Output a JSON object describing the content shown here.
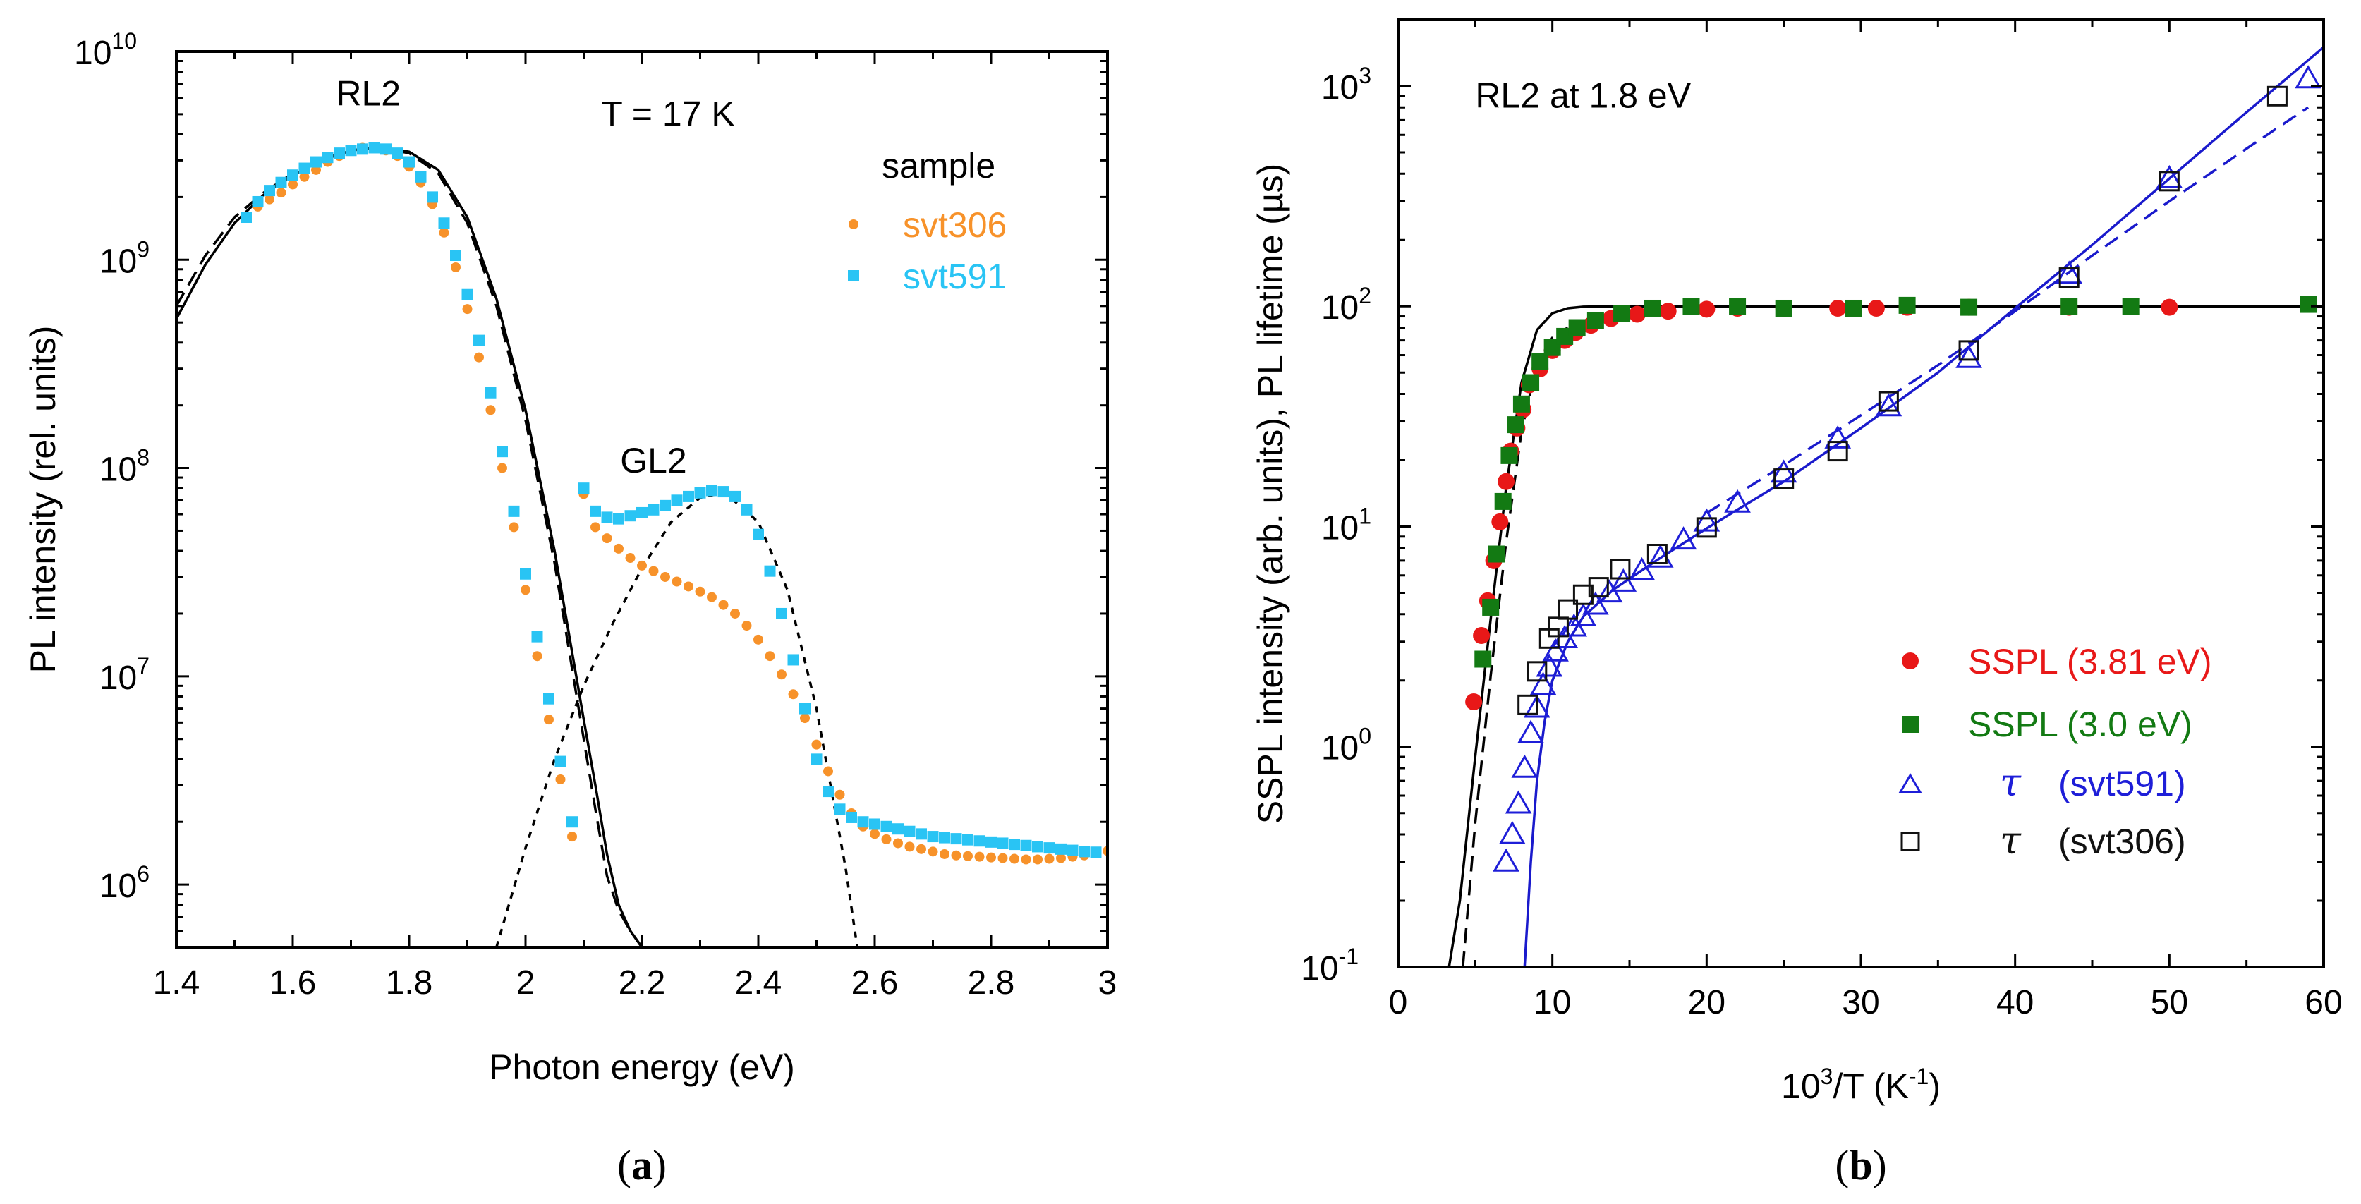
{
  "colors": {
    "svt306": "#f7922a",
    "svt591": "#29c4f4",
    "sspl381": "#e81818",
    "sspl30": "#137a13",
    "tau591": "#1e1ed8",
    "tau306": "#111111",
    "fit_blue": "#1a1acc",
    "fit_black": "#000000"
  },
  "chart_data": [
    {
      "panel": "a",
      "panel_label": {
        "open": "(",
        "letter": "a",
        "close": ")"
      },
      "type": "scatter",
      "xscale": "linear",
      "yscale": "log",
      "xlabel": "Photon energy (eV)",
      "ylabel": "PL intensity (rel. units)",
      "xlim": [
        1.4,
        3.0
      ],
      "ylim": [
        500000,
        10000000000
      ],
      "xticks": [
        1.4,
        1.6,
        1.8,
        2.0,
        2.2,
        2.4,
        2.6,
        2.8,
        3.0
      ],
      "xtick_labels": [
        "1.4",
        "1.6",
        "1.8",
        "2",
        "2.2",
        "2.4",
        "2.6",
        "2.8",
        "3"
      ],
      "yticks": [
        {
          "value": 1000000,
          "base": "10",
          "exp": "6"
        },
        {
          "value": 10000000,
          "base": "10",
          "exp": "7"
        },
        {
          "value": 100000000,
          "base": "10",
          "exp": "8"
        },
        {
          "value": 1000000000,
          "base": "10",
          "exp": "9"
        },
        {
          "value": 10000000000,
          "base": "10",
          "exp": "10"
        }
      ],
      "annotations": [
        {
          "text": "RL2",
          "x": 1.73,
          "y": 5500000000
        },
        {
          "text": "T = 17 K",
          "x": 2.13,
          "y": 4400000000
        },
        {
          "text": "GL2",
          "x": 2.22,
          "y": 95000000
        }
      ],
      "legend": {
        "title": "sample",
        "position": "top-right",
        "entries": [
          {
            "label": "svt306",
            "series": "svt306"
          },
          {
            "label": "svt591",
            "series": "svt591"
          }
        ]
      },
      "series": [
        {
          "name": "svt306",
          "marker": "circle",
          "color_key": "svt306",
          "x": [
            1.54,
            1.56,
            1.58,
            1.6,
            1.62,
            1.64,
            1.66,
            1.68,
            1.7,
            1.72,
            1.74,
            1.76,
            1.78,
            1.8,
            1.82,
            1.84,
            1.86,
            1.88,
            1.9,
            1.92,
            1.94,
            1.96,
            1.98,
            2.0,
            2.02,
            2.04,
            2.06,
            2.08,
            2.1,
            2.12,
            2.14,
            2.16,
            2.18,
            2.2,
            2.22,
            2.24,
            2.26,
            2.28,
            2.3,
            2.32,
            2.34,
            2.36,
            2.38,
            2.4,
            2.42,
            2.44,
            2.46,
            2.48,
            2.5,
            2.52,
            2.54,
            2.56,
            2.58,
            2.6,
            2.62,
            2.64,
            2.66,
            2.68,
            2.7,
            2.72,
            2.74,
            2.76,
            2.78,
            2.8,
            2.82,
            2.84,
            2.86,
            2.88,
            2.9,
            2.92,
            2.94,
            2.96,
            2.98,
            3.0
          ],
          "y": [
            1800000000,
            1950000000,
            2100000000,
            2300000000,
            2500000000,
            2700000000,
            2950000000,
            3150000000,
            3350000000,
            3450000000,
            3450000000,
            3350000000,
            3150000000,
            2800000000,
            2350000000,
            1850000000,
            1350000000,
            920000000,
            580000000,
            340000000,
            190000000,
            100000000,
            52000000,
            26000000,
            12500000,
            6200000,
            3200000,
            1700000,
            75000000,
            52000000,
            46000000,
            41000000,
            37000000,
            34000000,
            32000000,
            30000000,
            28500000,
            27000000,
            25500000,
            24000000,
            22000000,
            20000000,
            17500000,
            15000000,
            12500000,
            10200000,
            8200000,
            6300000,
            4700000,
            3500000,
            2700000,
            2200000,
            1900000,
            1750000,
            1650000,
            1580000,
            1520000,
            1480000,
            1440000,
            1400000,
            1380000,
            1370000,
            1360000,
            1350000,
            1340000,
            1330000,
            1320000,
            1320000,
            1330000,
            1340000,
            1360000,
            1380000,
            1420000,
            1450000
          ]
        },
        {
          "name": "svt591",
          "marker": "square",
          "color_key": "svt591",
          "x": [
            1.52,
            1.54,
            1.56,
            1.58,
            1.6,
            1.62,
            1.64,
            1.66,
            1.68,
            1.7,
            1.72,
            1.74,
            1.76,
            1.78,
            1.8,
            1.82,
            1.84,
            1.86,
            1.88,
            1.9,
            1.92,
            1.94,
            1.96,
            1.98,
            2.0,
            2.02,
            2.04,
            2.06,
            2.08,
            2.1,
            2.12,
            2.14,
            2.16,
            2.18,
            2.2,
            2.22,
            2.24,
            2.26,
            2.28,
            2.3,
            2.32,
            2.34,
            2.36,
            2.38,
            2.4,
            2.42,
            2.44,
            2.46,
            2.48,
            2.5,
            2.52,
            2.54,
            2.56,
            2.58,
            2.6,
            2.62,
            2.64,
            2.66,
            2.68,
            2.7,
            2.72,
            2.74,
            2.76,
            2.78,
            2.8,
            2.82,
            2.84,
            2.86,
            2.88,
            2.9,
            2.92,
            2.94,
            2.96,
            2.98
          ],
          "y": [
            1600000000,
            1900000000,
            2150000000,
            2350000000,
            2550000000,
            2750000000,
            2950000000,
            3100000000,
            3250000000,
            3350000000,
            3400000000,
            3450000000,
            3400000000,
            3250000000,
            2950000000,
            2500000000,
            2000000000,
            1500000000,
            1050000000,
            680000000,
            410000000,
            230000000,
            120000000,
            62000000,
            31000000,
            15500000,
            7800000,
            3900000,
            2000000,
            80000000,
            62000000,
            58000000,
            57000000,
            59000000,
            61000000,
            63000000,
            66000000,
            70000000,
            73000000,
            76000000,
            78000000,
            77000000,
            73000000,
            63000000,
            48000000,
            32000000,
            20000000,
            12000000,
            7000000,
            4000000,
            2800000,
            2300000,
            2100000,
            2000000,
            1950000,
            1900000,
            1850000,
            1800000,
            1750000,
            1700000,
            1680000,
            1660000,
            1640000,
            1620000,
            1600000,
            1580000,
            1560000,
            1540000,
            1520000,
            1500000,
            1480000,
            1460000,
            1440000,
            1430000
          ]
        }
      ],
      "fits": [
        {
          "name": "RL2 fit (solid)",
          "style": "solid",
          "color_key": "fit_black",
          "x": [
            1.4,
            1.45,
            1.5,
            1.55,
            1.6,
            1.65,
            1.7,
            1.75,
            1.8,
            1.85,
            1.9,
            1.95,
            2.0,
            2.05,
            2.1,
            2.12,
            2.14,
            2.16,
            2.18,
            2.2,
            2.22,
            2.24
          ],
          "y": [
            520000000,
            950000000,
            1500000000,
            2050000000,
            2550000000,
            3000000000,
            3350000000,
            3480000000,
            3300000000,
            2700000000,
            1600000000,
            650000000,
            190000000,
            40000000,
            6200000,
            3000000,
            1400000,
            800000,
            600000,
            500000,
            500000,
            500000
          ]
        },
        {
          "name": "RL2 fit (dashed)",
          "style": "dashed",
          "color_key": "fit_black",
          "x": [
            1.4,
            1.45,
            1.5,
            1.55,
            1.6,
            1.65,
            1.7,
            1.75,
            1.8,
            1.85,
            1.9,
            1.95,
            2.0,
            2.05,
            2.1,
            2.12,
            2.14,
            2.16,
            2.18,
            2.2,
            2.21
          ],
          "y": [
            600000000,
            1050000000,
            1600000000,
            2100000000,
            2600000000,
            3050000000,
            3350000000,
            3450000000,
            3250000000,
            2600000000,
            1500000000,
            600000000,
            170000000,
            35000000,
            5000000,
            2300000,
            1100000,
            750000,
            600000,
            500000,
            500000
          ]
        },
        {
          "name": "GL2 fit (dotted)",
          "style": "dotted",
          "color_key": "fit_black",
          "x": [
            1.95,
            2.0,
            2.05,
            2.1,
            2.15,
            2.2,
            2.25,
            2.3,
            2.33,
            2.35,
            2.4,
            2.45,
            2.5,
            2.55,
            2.57
          ],
          "y": [
            500000,
            1500000,
            4000000,
            9000000,
            18000000,
            33000000,
            55000000,
            72000000,
            75000000,
            73000000,
            55000000,
            26000000,
            7000000,
            1200000,
            500000
          ]
        }
      ]
    },
    {
      "panel": "b",
      "panel_label": {
        "open": "(",
        "letter": "b",
        "close": ")"
      },
      "type": "scatter",
      "xscale": "linear",
      "yscale": "log",
      "xlabel": {
        "base": "10",
        "exp": "3",
        "rest": "/T (K",
        "exp2": "-1",
        "close": ")"
      },
      "ylabel": "SSPL intensity (arb. units), PL lifetime (µs)",
      "xlim": [
        0,
        60
      ],
      "ylim": [
        0.1,
        2000
      ],
      "xticks": [
        0,
        10,
        20,
        30,
        40,
        50,
        60
      ],
      "xtick_labels": [
        "0",
        "10",
        "20",
        "30",
        "40",
        "50",
        "60"
      ],
      "yticks": [
        {
          "value": 0.1,
          "base": "10",
          "exp": "-1"
        },
        {
          "value": 1,
          "base": "10",
          "exp": "0"
        },
        {
          "value": 10,
          "base": "10",
          "exp": "1"
        },
        {
          "value": 100,
          "base": "10",
          "exp": "2"
        },
        {
          "value": 1000,
          "base": "10",
          "exp": "3"
        }
      ],
      "annotations": [
        {
          "text": "RL2 at 1.8 eV",
          "x": 5.0,
          "y": 800
        }
      ],
      "legend": {
        "position": "bottom-right",
        "entries": [
          {
            "label": "SSPL (3.81 eV)",
            "series": "SSPL (3.81 eV)"
          },
          {
            "label": "SSPL (3.0 eV)",
            "series": "SSPL (3.0 eV)"
          },
          {
            "label": "τ",
            "label2": "(svt591)",
            "series": "τ (svt591)"
          },
          {
            "label": "τ",
            "label2": "(svt306)",
            "series": "τ (svt306)"
          }
        ]
      },
      "series": [
        {
          "name": "SSPL (3.81 eV)",
          "marker": "circle",
          "color_key": "sspl381",
          "x": [
            4.9,
            5.4,
            5.8,
            6.2,
            6.6,
            7.0,
            7.3,
            7.7,
            8.1,
            8.5,
            9.2,
            10.0,
            10.8,
            11.5,
            12.5,
            13.8,
            15.5,
            17.5,
            20.0,
            22.0,
            25.0,
            28.5,
            31.0,
            33.0,
            37.0,
            43.5,
            50.0
          ],
          "y": [
            1.6,
            3.2,
            4.6,
            7.0,
            10.5,
            16.0,
            22.0,
            28.0,
            34.0,
            44.0,
            52.0,
            63.0,
            70.0,
            76.0,
            82.0,
            88.0,
            92.0,
            95.0,
            97.0,
            98.0,
            98.0,
            98.0,
            98.0,
            99.0,
            99.0,
            99.0,
            99.0
          ]
        },
        {
          "name": "SSPL (3.0 eV)",
          "marker": "square",
          "color_key": "sspl30",
          "x": [
            5.5,
            6.0,
            6.4,
            6.8,
            7.2,
            7.6,
            8.0,
            8.6,
            9.2,
            10.0,
            10.8,
            11.6,
            12.8,
            14.5,
            16.5,
            19.0,
            22.0,
            25.0,
            29.5,
            33.0,
            37.0,
            43.5,
            47.5,
            59.0
          ],
          "y": [
            2.5,
            4.3,
            7.5,
            13.0,
            21.0,
            29.0,
            36.0,
            45.0,
            56.0,
            65.0,
            73.0,
            80.0,
            86.0,
            93.0,
            98.0,
            100.0,
            100.0,
            98.0,
            98.0,
            101.0,
            99.0,
            100.0,
            100.0,
            102.0
          ]
        },
        {
          "name": "τ (svt591)",
          "marker": "triangle-open",
          "color_key": "tau591",
          "x": [
            7.0,
            7.4,
            7.8,
            8.2,
            8.6,
            9.0,
            9.4,
            9.8,
            10.2,
            10.8,
            11.4,
            12.0,
            12.8,
            13.7,
            14.6,
            15.8,
            17.0,
            18.5,
            20.0,
            22.0,
            25.0,
            28.5,
            31.8,
            37.0,
            43.5,
            50.0,
            59.0
          ],
          "y": [
            0.3,
            0.4,
            0.55,
            0.8,
            1.15,
            1.5,
            1.9,
            2.3,
            2.7,
            3.1,
            3.5,
            3.9,
            4.4,
            5.0,
            5.6,
            6.3,
            7.2,
            8.7,
            10.5,
            12.8,
            17.5,
            25.0,
            35.0,
            58.0,
            140.0,
            380.0,
            1080.0
          ]
        },
        {
          "name": "τ (svt306)",
          "marker": "square-open",
          "color_key": "tau306",
          "x": [
            8.4,
            9.0,
            9.8,
            10.4,
            11.0,
            12.0,
            13.0,
            14.4,
            16.8,
            20.0,
            25.0,
            28.5,
            31.8,
            37.0,
            43.5,
            50.0,
            57.0
          ],
          "y": [
            1.55,
            2.2,
            3.1,
            3.5,
            4.2,
            4.9,
            5.3,
            6.4,
            7.5,
            9.9,
            16.5,
            22.0,
            37.0,
            63.0,
            135.0,
            370.0,
            900.0
          ]
        }
      ],
      "fits": [
        {
          "name": "SSPL fit (solid)",
          "style": "solid",
          "color_key": "fit_black",
          "x": [
            3.3,
            4.0,
            5.0,
            6.0,
            7.0,
            8.0,
            9.0,
            10.0,
            11.0,
            12.0,
            14.0,
            20.0,
            30.0,
            40.0,
            50.0,
            60.0
          ],
          "y": [
            0.1,
            0.2,
            0.9,
            3.8,
            15.0,
            45.0,
            78.0,
            93.0,
            98.0,
            99.5,
            100.0,
            100.0,
            100.0,
            100.0,
            100.0,
            100.0
          ]
        },
        {
          "name": "SSPL fit (dashed)",
          "style": "dashed",
          "color_key": "fit_black",
          "x": [
            4.2,
            5.0,
            6.0,
            7.0,
            8.0,
            9.0,
            10.0,
            11.0
          ],
          "y": [
            0.1,
            0.45,
            2.1,
            8.5,
            27.0,
            55.0,
            72.0,
            80.0
          ]
        },
        {
          "name": "τ fit (solid)",
          "style": "solid",
          "color_key": "fit_blue",
          "x": [
            8.2,
            8.6,
            9.0,
            9.5,
            10.0,
            11.0,
            12.0,
            14.0,
            17.0,
            20.0,
            25.0,
            30.0,
            35.0,
            40.0,
            45.0,
            50.0,
            55.0,
            60.0
          ],
          "y": [
            0.1,
            0.3,
            0.7,
            1.3,
            2.0,
            3.0,
            3.9,
            5.2,
            7.2,
            9.8,
            16.0,
            28.0,
            50.0,
            98.0,
            190.0,
            380.0,
            760.0,
            1500.0
          ]
        },
        {
          "name": "τ fit (dashed)",
          "style": "dashed",
          "color_key": "fit_blue",
          "x": [
            20.0,
            25.0,
            30.0,
            35.0,
            40.0,
            45.0,
            50.0,
            55.0,
            59.0
          ],
          "y": [
            11.5,
            19.0,
            32.0,
            54.0,
            95.0,
            170.0,
            300.0,
            520.0,
            800.0
          ]
        }
      ]
    }
  ]
}
